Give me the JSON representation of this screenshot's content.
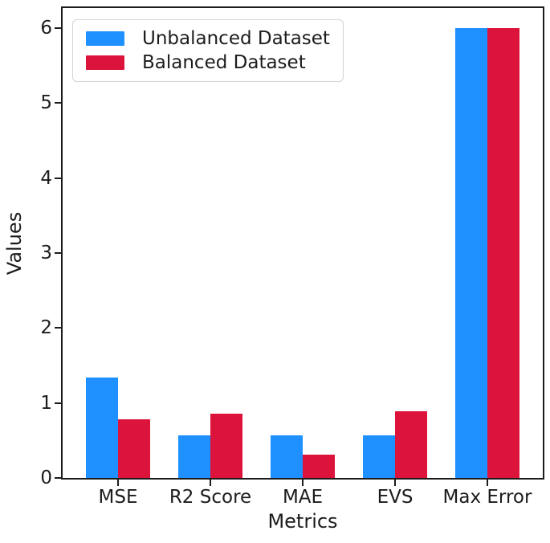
{
  "chart_data": {
    "type": "bar",
    "title": "",
    "xlabel": "Metrics",
    "ylabel": "Values",
    "categories": [
      "MSE",
      "R2 Score",
      "MAE",
      "EVS",
      "Max Error"
    ],
    "series": [
      {
        "name": "Unbalanced Dataset",
        "color": "#1E90FF",
        "values": [
          1.34,
          0.57,
          0.57,
          0.57,
          6.0
        ]
      },
      {
        "name": "Balanced Dataset",
        "color": "#DC143C",
        "values": [
          0.78,
          0.86,
          0.31,
          0.89,
          6.0
        ]
      }
    ],
    "yticks": [
      0,
      1,
      2,
      3,
      4,
      5,
      6
    ],
    "ylim": [
      0,
      6.27
    ],
    "xlim": [
      -0.6,
      4.6
    ],
    "bar_width": 0.35,
    "legend_position": "upper left",
    "grid": false,
    "spine_color": "#1c1c1c",
    "text_color": "#1c1c1c",
    "background": "#ffffff"
  }
}
